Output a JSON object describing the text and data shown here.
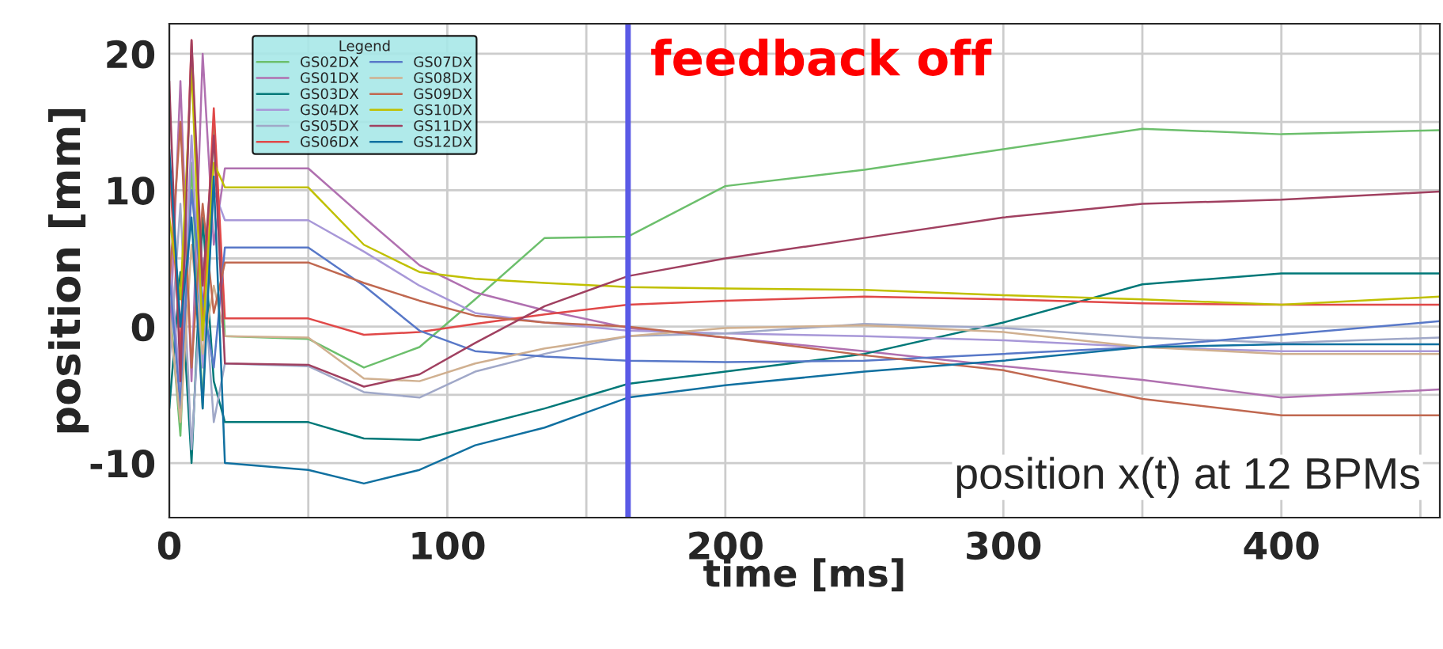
{
  "chart_data": {
    "type": "line",
    "xlabel": "time [ms]",
    "ylabel": "position [mm]",
    "legend_title": "Legend",
    "x": [
      0,
      4,
      8,
      12,
      16,
      20,
      50,
      70,
      90,
      110,
      135,
      165,
      200,
      250,
      300,
      350,
      400,
      457
    ],
    "series": [
      {
        "name": "GS02DX",
        "color": "#6cbf6c",
        "values": [
          2,
          -8,
          12,
          -6,
          15,
          -0.7,
          -0.9,
          -3.0,
          -1.5,
          2,
          6.5,
          6.6,
          10.3,
          11.5,
          13.0,
          14.5,
          14.1,
          14.4
        ]
      },
      {
        "name": "GS01DX",
        "color": "#b070b0",
        "values": [
          -2,
          18,
          -4,
          20,
          6,
          11.6,
          11.6,
          8.0,
          4.5,
          2.5,
          1.2,
          -0.1,
          -0.8,
          -1.8,
          -2.9,
          -3.9,
          -5.2,
          -4.6
        ]
      },
      {
        "name": "GS03DX",
        "color": "#007878",
        "values": [
          -6,
          4,
          -10,
          8,
          -4,
          -7,
          -7,
          -8.2,
          -8.3,
          -7.3,
          -6.0,
          -4.2,
          -3.3,
          -2.0,
          0.3,
          3.1,
          3.9,
          3.9
        ]
      },
      {
        "name": "GS04DX",
        "color": "#a898d8",
        "values": [
          6,
          -5,
          14,
          -3,
          10,
          7.8,
          7.8,
          5.5,
          3.0,
          1.0,
          0.3,
          -0.3,
          -0.5,
          -0.7,
          -1.0,
          -1.5,
          -1.8,
          -1.8
        ]
      },
      {
        "name": "GS05DX",
        "color": "#a0a8c8",
        "values": [
          -3,
          9,
          -9,
          5,
          -7,
          -2.7,
          -2.9,
          -4.8,
          -5.2,
          -3.3,
          -2.0,
          -0.7,
          -0.5,
          0.2,
          -0.1,
          -0.8,
          -1.2,
          -0.8
        ]
      },
      {
        "name": "GS06DX",
        "color": "#e04848",
        "values": [
          12,
          -2,
          21,
          0,
          16,
          0.6,
          0.6,
          -0.6,
          -0.4,
          0.2,
          0.9,
          1.6,
          1.9,
          2.2,
          2.0,
          1.7,
          1.6,
          1.6
        ]
      },
      {
        "name": "GS07DX",
        "color": "#5878c8",
        "values": [
          4,
          -6,
          10,
          2,
          -3,
          5.8,
          5.8,
          3.0,
          -0.3,
          -1.8,
          -2.2,
          -2.5,
          -2.6,
          -2.5,
          -2.0,
          -1.5,
          -0.6,
          0.4
        ]
      },
      {
        "name": "GS08DX",
        "color": "#d0b090",
        "values": [
          1,
          -7,
          6,
          -2,
          3,
          -0.7,
          -0.8,
          -3.8,
          -4.0,
          -2.7,
          -1.6,
          -0.7,
          -0.1,
          0.1,
          -0.4,
          -1.5,
          -2.0,
          -2.0
        ]
      },
      {
        "name": "GS09DX",
        "color": "#c06850",
        "values": [
          3,
          15,
          -3,
          9,
          1,
          4.7,
          4.7,
          3.2,
          1.9,
          0.8,
          0.3,
          0.0,
          -0.8,
          -2.1,
          -3.2,
          -5.3,
          -6.5,
          -6.5
        ]
      },
      {
        "name": "GS10DX",
        "color": "#c0c000",
        "values": [
          8,
          2,
          19,
          -1,
          12,
          10.2,
          10.2,
          6.0,
          4.0,
          3.5,
          3.2,
          2.9,
          2.8,
          2.7,
          2.3,
          2.0,
          1.6,
          2.2
        ]
      },
      {
        "name": "GS11DX",
        "color": "#a04060",
        "values": [
          18,
          -4,
          21,
          3,
          14,
          -2.7,
          -2.8,
          -4.4,
          -3.5,
          -1.2,
          1.5,
          3.7,
          5.0,
          6.5,
          8.0,
          9.0,
          9.3,
          9.9
        ]
      },
      {
        "name": "GS12DX",
        "color": "#1070a0",
        "values": [
          13,
          0,
          8,
          -6,
          11,
          -10,
          -10.5,
          -11.5,
          -10.5,
          -8.7,
          -7.4,
          -5.2,
          -4.3,
          -3.3,
          -2.5,
          -1.5,
          -1.3,
          -1.3
        ]
      }
    ],
    "xlim": [
      0,
      457
    ],
    "ylim": [
      -14,
      22.2
    ],
    "xticks": [
      0,
      {
        "value": 50,
        "label": null
      },
      100,
      {
        "value": 150,
        "label": null
      },
      200,
      {
        "value": 250,
        "label": null
      },
      300,
      {
        "value": 350,
        "label": null
      },
      400,
      {
        "value": 450,
        "label": null
      }
    ],
    "yticks": [
      -10,
      {
        "value": -5,
        "label": null
      },
      0,
      {
        "value": 5,
        "label": null
      },
      10,
      {
        "value": 15,
        "label": null
      },
      20
    ],
    "ref_lines": [
      {
        "axis": "x",
        "value": 165,
        "label": "feedback off",
        "color": "#5a5ae6"
      }
    ],
    "annotations": [
      "position x(t) at 12 BPMs"
    ],
    "grid": true,
    "legend": "top left",
    "line_style": "solid",
    "marker": "none"
  }
}
